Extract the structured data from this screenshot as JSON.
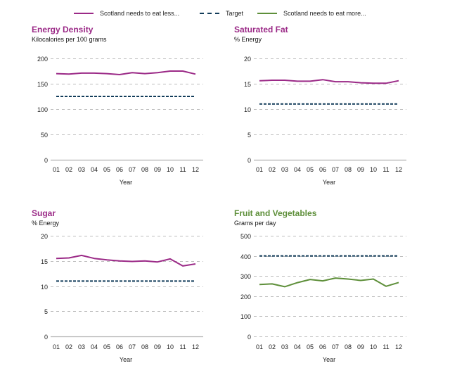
{
  "legend": [
    {
      "label": "Scotland needs to eat less...",
      "color": "#9b2a87",
      "style": "solid"
    },
    {
      "label": "Target",
      "color": "#123c5a",
      "style": "dashed"
    },
    {
      "label": "Scotland needs to eat more...",
      "color": "#5e8f3a",
      "style": "solid"
    }
  ],
  "colors": {
    "less": "#9b2a87",
    "more": "#5e8f3a",
    "target": "#123c5a",
    "grid": "#bdbdbd",
    "axis": "#b0b0b0"
  },
  "chart_data": [
    {
      "type": "line",
      "title": "Energy Density",
      "subtitle": "Kilocalories per 100 grams",
      "title_color": "#9b2a87",
      "xlabel": "Year",
      "ylabel": "",
      "categories": [
        "01",
        "02",
        "03",
        "04",
        "05",
        "06",
        "07",
        "08",
        "09",
        "10",
        "11",
        "12"
      ],
      "ylim": [
        0,
        200
      ],
      "yticks": [
        0,
        50,
        100,
        150,
        200
      ],
      "zero_line": "solid",
      "grid": true,
      "series": [
        {
          "name": "Scotland needs to eat less...",
          "color": "#9b2a87",
          "style": "solid",
          "values": [
            170,
            169,
            171,
            171,
            170,
            168,
            172,
            170,
            172,
            175,
            175,
            169
          ]
        },
        {
          "name": "Target",
          "color": "#123c5a",
          "style": "dashed",
          "values": [
            125,
            125,
            125,
            125,
            125,
            125,
            125,
            125,
            125,
            125,
            125,
            125
          ]
        }
      ]
    },
    {
      "type": "line",
      "title": "Saturated Fat",
      "subtitle": "% Energy",
      "title_color": "#9b2a87",
      "xlabel": "Year",
      "ylabel": "",
      "categories": [
        "01",
        "02",
        "03",
        "04",
        "05",
        "06",
        "07",
        "08",
        "09",
        "10",
        "11",
        "12"
      ],
      "ylim": [
        0,
        20
      ],
      "yticks": [
        0,
        5,
        10,
        15,
        20
      ],
      "zero_line": "solid",
      "grid": true,
      "series": [
        {
          "name": "Scotland needs to eat less...",
          "color": "#9b2a87",
          "style": "solid",
          "values": [
            15.6,
            15.7,
            15.7,
            15.5,
            15.5,
            15.8,
            15.4,
            15.4,
            15.2,
            15.1,
            15.1,
            15.6
          ]
        },
        {
          "name": "Target",
          "color": "#123c5a",
          "style": "dashed",
          "values": [
            11,
            11,
            11,
            11,
            11,
            11,
            11,
            11,
            11,
            11,
            11,
            11
          ]
        }
      ]
    },
    {
      "type": "line",
      "title": "Sugar",
      "subtitle": "% Energy",
      "title_color": "#9b2a87",
      "xlabel": "Year",
      "ylabel": "",
      "categories": [
        "01",
        "02",
        "03",
        "04",
        "05",
        "06",
        "07",
        "08",
        "09",
        "10",
        "11",
        "12"
      ],
      "ylim": [
        0,
        20
      ],
      "yticks": [
        0,
        5,
        10,
        15,
        20
      ],
      "zero_line": "solid",
      "grid": true,
      "series": [
        {
          "name": "Scotland needs to eat less...",
          "color": "#9b2a87",
          "style": "solid",
          "values": [
            15.5,
            15.6,
            16.1,
            15.5,
            15.2,
            15.0,
            14.9,
            15.0,
            14.8,
            15.4,
            14.0,
            14.4
          ]
        },
        {
          "name": "Target",
          "color": "#123c5a",
          "style": "dashed",
          "values": [
            11,
            11,
            11,
            11,
            11,
            11,
            11,
            11,
            11,
            11,
            11,
            11
          ]
        }
      ]
    },
    {
      "type": "line",
      "title": "Fruit and Vegetables",
      "subtitle": "Grams per day",
      "title_color": "#5e8f3a",
      "xlabel": "Year",
      "ylabel": "",
      "categories": [
        "01",
        "02",
        "03",
        "04",
        "05",
        "06",
        "07",
        "08",
        "09",
        "10",
        "11",
        "12"
      ],
      "ylim": [
        0,
        500
      ],
      "yticks": [
        0,
        100,
        200,
        300,
        400,
        500
      ],
      "zero_line": "dashed",
      "grid": true,
      "series": [
        {
          "name": "Scotland needs to eat more...",
          "color": "#5e8f3a",
          "style": "solid",
          "values": [
            258,
            261,
            247,
            267,
            283,
            276,
            290,
            285,
            278,
            285,
            249,
            268
          ]
        },
        {
          "name": "Target",
          "color": "#123c5a",
          "style": "dashed",
          "values": [
            400,
            400,
            400,
            400,
            400,
            400,
            400,
            400,
            400,
            400,
            400,
            400
          ]
        }
      ]
    }
  ]
}
